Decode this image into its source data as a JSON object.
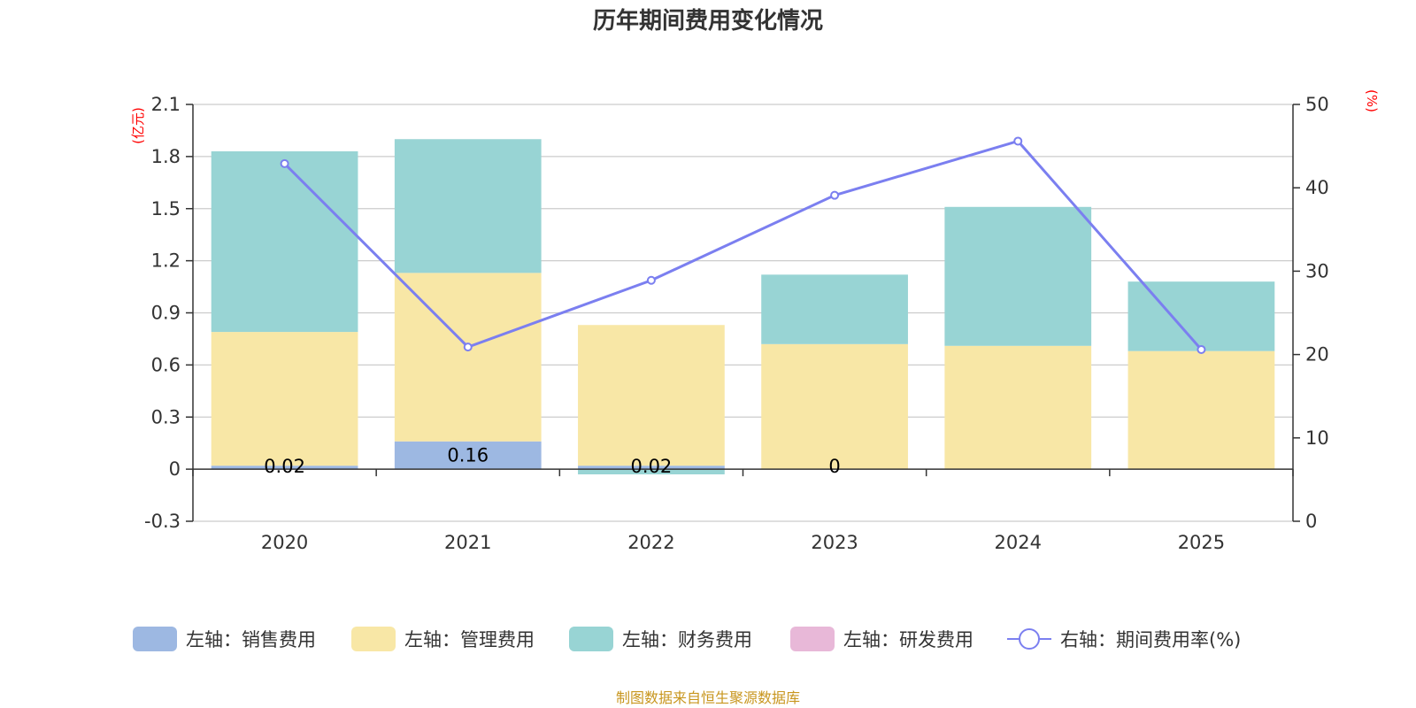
{
  "chart_data": {
    "type": "bar",
    "title": "历年期间费用变化情况",
    "categories": [
      "2020",
      "2021",
      "2022",
      "2023",
      "2024",
      "2025"
    ],
    "left_axis": {
      "unit": "(亿元)",
      "min": -0.3,
      "max": 2.1,
      "ticks": [
        "-0.3",
        "0",
        "0.3",
        "0.6",
        "0.9",
        "1.2",
        "1.5",
        "1.8",
        "2.1"
      ]
    },
    "right_axis": {
      "unit": "(%)",
      "min": 0,
      "max": 50,
      "ticks": [
        "0",
        "10",
        "20",
        "30",
        "40",
        "50"
      ]
    },
    "series": [
      {
        "name": "左轴：销售费用",
        "kind": "bar",
        "axis": "left",
        "color": "#9db8e2",
        "values": [
          0.02,
          0.16,
          0.02,
          0,
          0,
          0
        ],
        "labels": [
          "0.02",
          "0.16",
          "0.02",
          "0",
          "",
          ""
        ]
      },
      {
        "name": "左轴：管理费用",
        "kind": "bar",
        "axis": "left",
        "color": "#f8e7a6",
        "values": [
          0.77,
          0.97,
          0.81,
          0.72,
          0.71,
          0.68
        ]
      },
      {
        "name": "左轴：财务费用",
        "kind": "bar",
        "axis": "left",
        "color": "#98d4d4",
        "values": [
          1.04,
          0.77,
          -0.03,
          0.4,
          0.8,
          0.4
        ]
      },
      {
        "name": "左轴：研发费用",
        "kind": "bar",
        "axis": "left",
        "color": "#e8b8d8",
        "values": [
          0,
          0,
          0,
          0,
          0,
          0
        ]
      },
      {
        "name": "右轴：期间费用率(%)",
        "kind": "line",
        "axis": "right",
        "color": "#7b7ff0",
        "values": [
          42.9,
          20.9,
          28.9,
          39.1,
          45.6,
          20.6
        ]
      }
    ],
    "grid": true,
    "legend_position": "bottom"
  },
  "source_note": "制图数据来自恒生聚源数据库"
}
